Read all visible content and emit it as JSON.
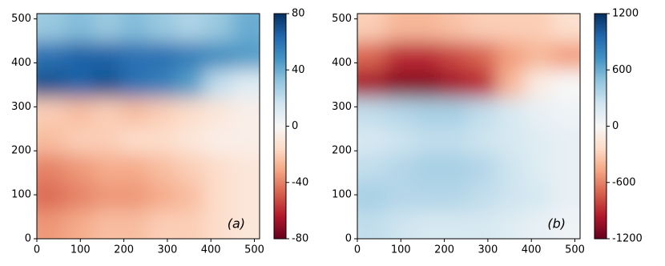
{
  "chart_data": [
    {
      "type": "heatmap",
      "annotation": "(a)",
      "xlim": [
        0,
        512
      ],
      "ylim": [
        0,
        512
      ],
      "xticks": [
        0,
        100,
        200,
        300,
        400,
        500
      ],
      "yticks": [
        0,
        100,
        200,
        300,
        400,
        500
      ],
      "clim": [
        -80,
        80
      ],
      "cticks": [
        -80,
        -40,
        0,
        40,
        80
      ],
      "colormap": [
        "#67001f",
        "#b2182b",
        "#d6604d",
        "#f4a582",
        "#fddbc7",
        "#f7f7f7",
        "#d1e5f0",
        "#92c5de",
        "#4393c3",
        "#2166ac",
        "#053061"
      ],
      "values": [
        [
          30,
          35,
          30,
          35,
          30,
          25,
          30,
          40
        ],
        [
          60,
          65,
          65,
          60,
          60,
          55,
          50,
          45
        ],
        [
          70,
          65,
          70,
          60,
          55,
          45,
          20,
          10
        ],
        [
          -20,
          -25,
          -20,
          -25,
          -20,
          -15,
          -10,
          -5
        ],
        [
          -25,
          -20,
          -20,
          -15,
          -15,
          -10,
          -5,
          -5
        ],
        [
          -40,
          -35,
          -30,
          -30,
          -25,
          -20,
          -15,
          -10
        ],
        [
          -45,
          -40,
          -35,
          -35,
          -30,
          -25,
          -15,
          -10
        ],
        [
          -35,
          -30,
          -25,
          -25,
          -20,
          -20,
          -15,
          -10
        ]
      ]
    },
    {
      "type": "heatmap",
      "annotation": "(b)",
      "xlim": [
        0,
        512
      ],
      "ylim": [
        0,
        512
      ],
      "xticks": [
        0,
        100,
        200,
        300,
        400,
        500
      ],
      "yticks": [
        0,
        100,
        200,
        300,
        400,
        500
      ],
      "clim": [
        -1200,
        1200
      ],
      "cticks": [
        -1200,
        -600,
        0,
        600,
        1200
      ],
      "colormap": [
        "#67001f",
        "#b2182b",
        "#d6604d",
        "#f4a582",
        "#fddbc7",
        "#f7f7f7",
        "#d1e5f0",
        "#92c5de",
        "#4393c3",
        "#2166ac",
        "#053061"
      ],
      "values": [
        [
          -300,
          -400,
          -400,
          -350,
          -300,
          -300,
          -300,
          -200
        ],
        [
          -700,
          -900,
          -900,
          -800,
          -700,
          -500,
          -400,
          -500
        ],
        [
          -1000,
          -1100,
          -1100,
          -1000,
          -900,
          -400,
          -100,
          0
        ],
        [
          300,
          350,
          400,
          400,
          300,
          200,
          100,
          50
        ],
        [
          200,
          250,
          300,
          300,
          250,
          200,
          150,
          100
        ],
        [
          300,
          350,
          400,
          400,
          350,
          250,
          150,
          100
        ],
        [
          400,
          350,
          350,
          350,
          300,
          250,
          200,
          100
        ],
        [
          300,
          250,
          200,
          200,
          200,
          150,
          100,
          50
        ]
      ]
    }
  ]
}
